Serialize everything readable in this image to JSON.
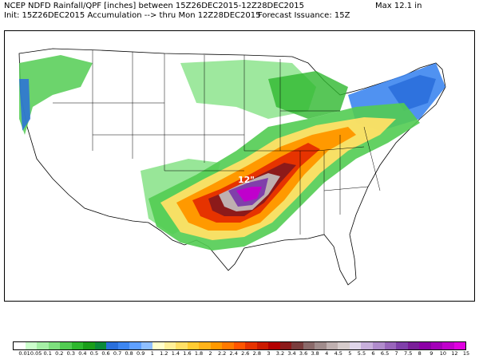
{
  "header": {
    "line1": "NCEP NDFD Rainfall/QPF [inches] between 15Z26DEC2015-12Z28DEC2015",
    "line2": "Init: 15Z26DEC2015 Accumulation --> thru Mon 12Z28DEC2015",
    "max": "Max  12.1 in",
    "issuance": "Forecast Issuance: 15Z"
  },
  "map": {
    "peak_label": "12\"",
    "peak_color": "#cc33cc"
  },
  "colorbar": {
    "labels": [
      "0.01",
      "0.05",
      "0.1",
      "0.2",
      "0.3",
      "0.4",
      "0.5",
      "0.6",
      "0.7",
      "0.8",
      "0.9",
      "1",
      "1.2",
      "1.4",
      "1.6",
      "1.8",
      "2",
      "2.2",
      "2.4",
      "2.6",
      "2.8",
      "3",
      "3.2",
      "3.4",
      "3.6",
      "3.8",
      "4",
      "4.5",
      "5",
      "5.5",
      "6",
      "6.5",
      "7",
      "7.5",
      "8",
      "9",
      "10",
      "12",
      "15"
    ],
    "colors": [
      "#ffffff",
      "#ccffcc",
      "#a6f0a6",
      "#7ee07e",
      "#52cc52",
      "#2eb82e",
      "#1a9e1a",
      "#0b8a3a",
      "#2a6fdb",
      "#3d86f0",
      "#5fa0ff",
      "#8fbfff",
      "#ffffcc",
      "#fff099",
      "#ffe066",
      "#ffcc33",
      "#ffb31a",
      "#ff9900",
      "#ff7a00",
      "#ff5500",
      "#e63300",
      "#cc1a00",
      "#b30000",
      "#8c1a1a",
      "#7a3d3d",
      "#8a6a6a",
      "#a08c8c",
      "#bfb0b0",
      "#d6cccc",
      "#e0d6ea",
      "#c8b0dc",
      "#b08ccc",
      "#9966bb",
      "#8040aa",
      "#7a1f99",
      "#8c00a6",
      "#a300b8",
      "#c000cc",
      "#e000e0"
    ]
  }
}
